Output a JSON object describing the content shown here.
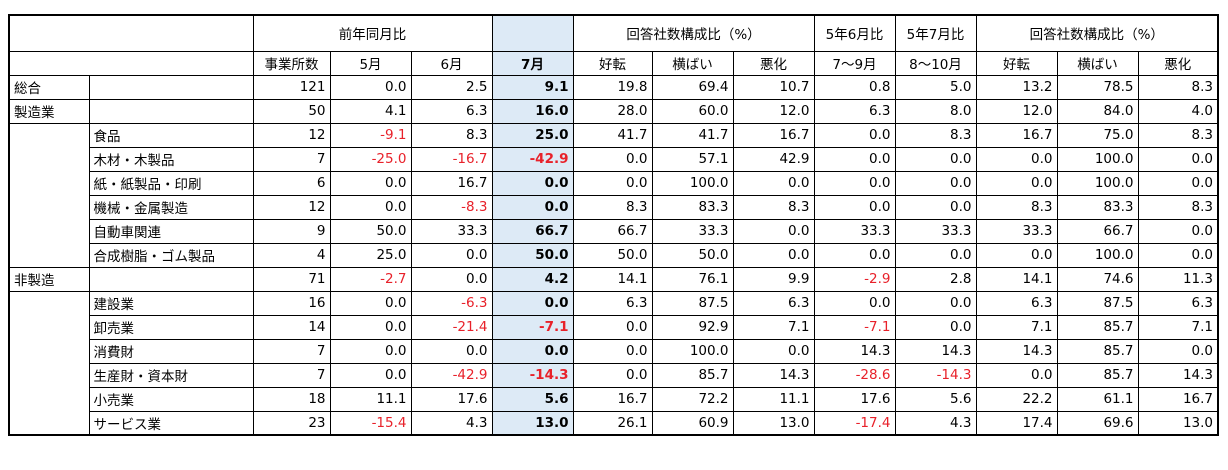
{
  "header": {
    "group_yoy": "前年同月比",
    "group_ratio_a": "回答社数構成比（%）",
    "group_june": "5年6月比",
    "group_july": "5年7月比",
    "group_ratio_b": "回答社数構成比（%）",
    "col_count": "事業所数",
    "col_may": "5月",
    "col_jun": "6月",
    "col_jul": "7月",
    "col_good1": "好転",
    "col_flat1": "横ばい",
    "col_bad1": "悪化",
    "col_jul_sep": "7～9月",
    "col_aug_oct": "8～10月",
    "col_good2": "好転",
    "col_flat2": "横ばい",
    "col_bad2": "悪化"
  },
  "rows": [
    {
      "label": "総合",
      "level": "main",
      "values": [
        "121",
        "0.0",
        "2.5",
        "9.1",
        "19.8",
        "69.4",
        "10.7",
        "0.8",
        "5.0",
        "13.2",
        "78.5",
        "8.3"
      ]
    },
    {
      "label": "製造業",
      "level": "main",
      "values": [
        "50",
        "4.1",
        "6.3",
        "16.0",
        "28.0",
        "60.0",
        "12.0",
        "6.3",
        "8.0",
        "12.0",
        "84.0",
        "4.0"
      ]
    },
    {
      "label": "食品",
      "level": "sub",
      "values": [
        "12",
        "-9.1",
        "8.3",
        "25.0",
        "41.7",
        "41.7",
        "16.7",
        "0.0",
        "8.3",
        "16.7",
        "75.0",
        "8.3"
      ]
    },
    {
      "label": "木材・木製品",
      "level": "sub",
      "values": [
        "7",
        "-25.0",
        "-16.7",
        "-42.9",
        "0.0",
        "57.1",
        "42.9",
        "0.0",
        "0.0",
        "0.0",
        "100.0",
        "0.0"
      ]
    },
    {
      "label": "紙・紙製品・印刷",
      "level": "sub",
      "values": [
        "6",
        "0.0",
        "16.7",
        "0.0",
        "0.0",
        "100.0",
        "0.0",
        "0.0",
        "0.0",
        "0.0",
        "100.0",
        "0.0"
      ]
    },
    {
      "label": "機械・金属製造",
      "level": "sub",
      "values": [
        "12",
        "0.0",
        "-8.3",
        "0.0",
        "8.3",
        "83.3",
        "8.3",
        "0.0",
        "0.0",
        "8.3",
        "83.3",
        "8.3"
      ]
    },
    {
      "label": "自動車関連",
      "level": "sub",
      "values": [
        "9",
        "50.0",
        "33.3",
        "66.7",
        "66.7",
        "33.3",
        "0.0",
        "33.3",
        "33.3",
        "33.3",
        "66.7",
        "0.0"
      ]
    },
    {
      "label": "合成樹脂・ゴム製品",
      "level": "sub",
      "values": [
        "4",
        "25.0",
        "0.0",
        "50.0",
        "50.0",
        "50.0",
        "0.0",
        "0.0",
        "0.0",
        "0.0",
        "100.0",
        "0.0"
      ]
    },
    {
      "label": "非製造",
      "level": "main",
      "values": [
        "71",
        "-2.7",
        "0.0",
        "4.2",
        "14.1",
        "76.1",
        "9.9",
        "-2.9",
        "2.8",
        "14.1",
        "74.6",
        "11.3"
      ]
    },
    {
      "label": "建設業",
      "level": "sub",
      "values": [
        "16",
        "0.0",
        "-6.3",
        "0.0",
        "6.3",
        "87.5",
        "6.3",
        "0.0",
        "0.0",
        "6.3",
        "87.5",
        "6.3"
      ]
    },
    {
      "label": "卸売業",
      "level": "sub",
      "values": [
        "14",
        "0.0",
        "-21.4",
        "-7.1",
        "0.0",
        "92.9",
        "7.1",
        "-7.1",
        "0.0",
        "7.1",
        "85.7",
        "7.1"
      ]
    },
    {
      "label": "消費財",
      "level": "sub",
      "values": [
        "7",
        "0.0",
        "0.0",
        "0.0",
        "0.0",
        "100.0",
        "0.0",
        "14.3",
        "14.3",
        "14.3",
        "85.7",
        "0.0"
      ]
    },
    {
      "label": "生産財・資本財",
      "level": "sub",
      "values": [
        "7",
        "0.0",
        "-42.9",
        "-14.3",
        "0.0",
        "85.7",
        "14.3",
        "-28.6",
        "-14.3",
        "0.0",
        "85.7",
        "14.3"
      ]
    },
    {
      "label": "小売業",
      "level": "sub",
      "values": [
        "18",
        "11.1",
        "17.6",
        "5.6",
        "16.7",
        "72.2",
        "11.1",
        "17.6",
        "5.6",
        "22.2",
        "61.1",
        "16.7"
      ]
    },
    {
      "label": "サービス業",
      "level": "sub",
      "values": [
        "23",
        "-15.4",
        "4.3",
        "13.0",
        "26.1",
        "60.9",
        "13.0",
        "-17.4",
        "4.3",
        "17.4",
        "69.6",
        "13.0"
      ]
    }
  ],
  "colors": {
    "negative": "#e8212a",
    "highlight": "#ddeaf6",
    "border": "#000000"
  }
}
